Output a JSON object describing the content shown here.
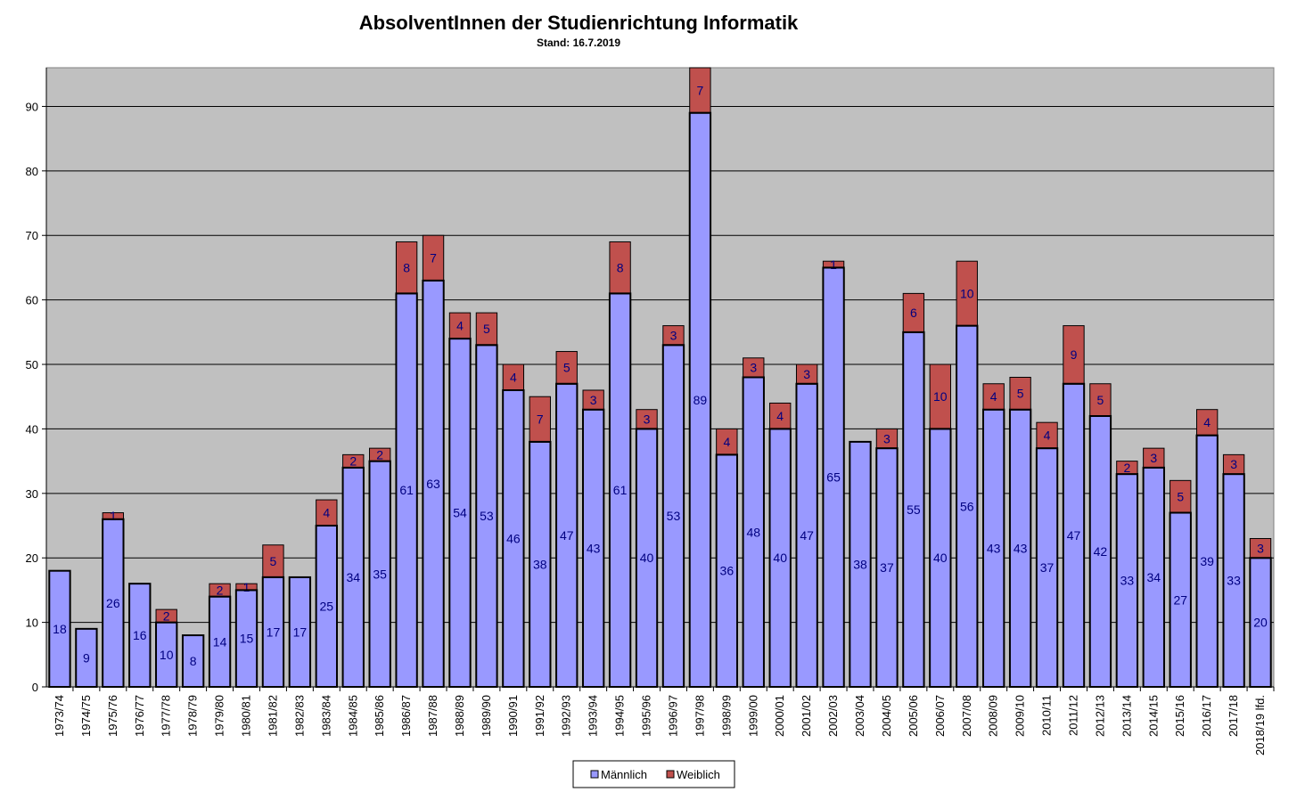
{
  "chart_data": {
    "type": "bar",
    "stacked": true,
    "title": "AbsolventInnen der Studienrichtung Informatik",
    "subtitle": "Stand: 16.7.2019",
    "ylim": [
      0,
      96
    ],
    "yticks": [
      0,
      10,
      20,
      30,
      40,
      50,
      60,
      70,
      80,
      90
    ],
    "grid": true,
    "legend_position": "bottom-center",
    "categories": [
      "1973/74",
      "1974/75",
      "1975/76",
      "1976/77",
      "1977/78",
      "1978/79",
      "1979/80",
      "1980/81",
      "1981/82",
      "1982/83",
      "1983/84",
      "1984/85",
      "1985/86",
      "1986/87",
      "1987/88",
      "1988/89",
      "1989/90",
      "1990/91",
      "1991/92",
      "1992/93",
      "1993/94",
      "1994/95",
      "1995/96",
      "1996/97",
      "1997/98",
      "1998/99",
      "1999/00",
      "2000/01",
      "2001/02",
      "2002/03",
      "2003/04",
      "2004/05",
      "2005/06",
      "2006/07",
      "2007/08",
      "2008/09",
      "2009/10",
      "2010/11",
      "2011/12",
      "2012/13",
      "2013/14",
      "2014/15",
      "2015/16",
      "2016/17",
      "2017/18",
      "2018/19 lfd."
    ],
    "series": [
      {
        "name": "Männlich",
        "color": "#9999ff",
        "values": [
          18,
          9,
          26,
          16,
          10,
          8,
          14,
          15,
          17,
          17,
          25,
          34,
          35,
          61,
          63,
          54,
          53,
          46,
          38,
          47,
          43,
          61,
          40,
          53,
          89,
          36,
          48,
          40,
          47,
          65,
          38,
          37,
          55,
          40,
          56,
          43,
          43,
          37,
          47,
          42,
          33,
          34,
          27,
          39,
          33,
          20
        ]
      },
      {
        "name": "Weiblich",
        "color": "#c0504d",
        "values": [
          0,
          0,
          1,
          0,
          2,
          0,
          2,
          1,
          5,
          0,
          4,
          2,
          2,
          8,
          7,
          4,
          5,
          4,
          7,
          5,
          3,
          8,
          3,
          3,
          7,
          4,
          3,
          4,
          3,
          1,
          0,
          3,
          6,
          10,
          10,
          4,
          5,
          4,
          9,
          5,
          2,
          3,
          5,
          4,
          3,
          3
        ]
      }
    ],
    "plot_background": "#c0c0c0",
    "bar_outline": "#000000",
    "label_color": "#000080"
  }
}
